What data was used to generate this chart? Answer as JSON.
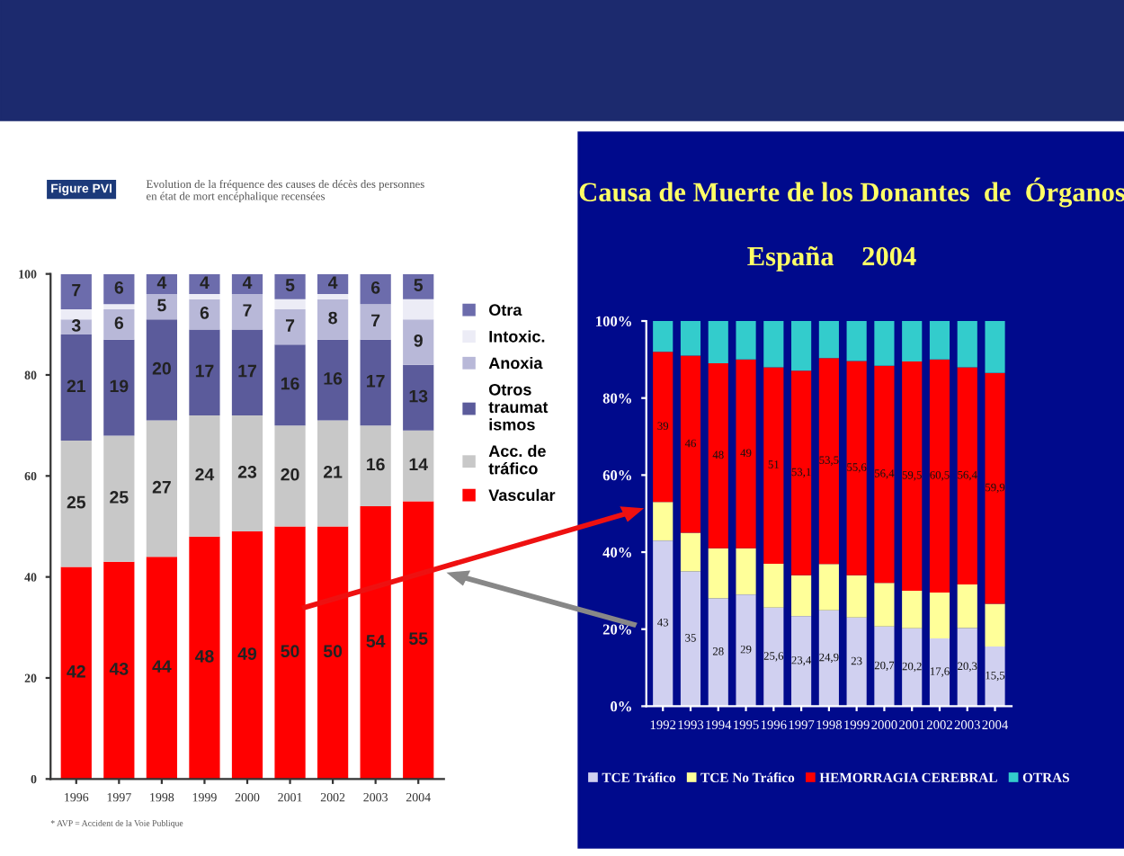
{
  "chart_data": [
    {
      "type": "bar",
      "stacked": true,
      "title": "Figure PVI",
      "subtitle": "Evolution de la fréquence des causes de décès des personnes\nen état de mort encéphalique recensées",
      "categories": [
        "1996",
        "1997",
        "1998",
        "1999",
        "2000",
        "2001",
        "2002",
        "2003",
        "2004"
      ],
      "series": [
        {
          "name": "Vascular",
          "color": "#ff0000",
          "values": [
            42,
            43,
            44,
            48,
            49,
            50,
            50,
            54,
            55
          ],
          "value_labels": [
            "42",
            "43",
            "44",
            "48",
            "49",
            "50",
            "50",
            "54",
            "55"
          ]
        },
        {
          "name": "Acc. de\ntráfico",
          "color": "#c8c8c8",
          "values": [
            25,
            25,
            27,
            24,
            23,
            20,
            21,
            16,
            14
          ],
          "value_labels": [
            "25",
            "25",
            "27",
            "24",
            "23",
            "20",
            "21",
            "16",
            "14"
          ]
        },
        {
          "name": "Otros\ntraumat\nismos",
          "color": "#5b5b9b",
          "values": [
            21,
            19,
            20,
            17,
            17,
            16,
            16,
            17,
            13
          ],
          "value_labels": [
            "21",
            "19",
            "20",
            "17",
            "17",
            "16",
            "16",
            "17",
            "13"
          ]
        },
        {
          "name": "Anoxia",
          "color": "#b8b8d8",
          "values": [
            3,
            6,
            5,
            6,
            7,
            7,
            8,
            7,
            9
          ],
          "value_labels": [
            "3",
            "6",
            "5",
            "6",
            "7",
            "7",
            "8",
            "7",
            "9"
          ]
        },
        {
          "name": "Intoxic.",
          "color": "#ececf6",
          "values": [
            2,
            1,
            0,
            1,
            0,
            2,
            1,
            0,
            4
          ]
        },
        {
          "name": "Otra",
          "color": "#6c6cac",
          "values": [
            7,
            6,
            4,
            4,
            4,
            5,
            4,
            6,
            5
          ],
          "value_labels": [
            "7",
            "6",
            "4",
            "4",
            "4",
            "5",
            "4",
            "6",
            "5"
          ]
        }
      ],
      "ylim": [
        0,
        100
      ],
      "yticks": [
        0,
        20,
        40,
        60,
        80,
        100
      ],
      "legend": "right",
      "annotations": [
        "* AVP = Accident de la Voie Publique"
      ]
    },
    {
      "type": "bar",
      "stacked": true,
      "title": "Causa de Muerte de los Donantes  de  Órganos",
      "subtitle": "España    2004",
      "categories": [
        "1992",
        "1993",
        "1994",
        "1995",
        "1996",
        "1997",
        "1998",
        "1999",
        "2000",
        "2001",
        "2002",
        "2003",
        "2004"
      ],
      "series": [
        {
          "name": "TCE Tráfico",
          "color": "#d0d0f0",
          "values": [
            43,
            35,
            28,
            29,
            25.6,
            23.4,
            24.9,
            23,
            20.7,
            20.2,
            17.6,
            20.3,
            15.5
          ],
          "value_labels": [
            "43",
            "35",
            "28",
            "29",
            "25,6",
            "23,4",
            "24,9",
            "23",
            "20,7",
            "20,2",
            "17,6",
            "20,3",
            "15,5"
          ]
        },
        {
          "name": "TCE No Tráfico",
          "color": "#ffff99",
          "values": [
            10,
            10,
            13,
            12,
            11.4,
            10.6,
            12,
            11,
            11.3,
            9.8,
            11.9,
            11.3,
            11.1
          ]
        },
        {
          "name": "HEMORRAGIA CEREBRAL",
          "color": "#ff0000",
          "values": [
            39,
            46,
            48,
            49,
            51,
            53.1,
            53.5,
            55.6,
            56.4,
            59.5,
            60.5,
            56.4,
            59.9
          ],
          "value_labels": [
            "39",
            "46",
            "48",
            "49",
            "51",
            "53,1",
            "53,5",
            "55,6",
            "56,4",
            "59,5",
            "60,5",
            "56,4",
            "59,9"
          ]
        },
        {
          "name": "OTRAS",
          "color": "#33cccc",
          "values": [
            8,
            9,
            11,
            10,
            12,
            12.9,
            9.6,
            10.4,
            11.6,
            10.5,
            10,
            12,
            13.5
          ]
        }
      ],
      "ylim": [
        0,
        100
      ],
      "yticks": [
        {
          "value": 0,
          "label": "0%"
        },
        {
          "value": 20,
          "label": "20%"
        },
        {
          "value": 40,
          "label": "40%"
        },
        {
          "value": 60,
          "label": "60%"
        },
        {
          "value": 80,
          "label": "80%"
        },
        {
          "value": 100,
          "label": "100%"
        }
      ],
      "legend": "bottom"
    }
  ]
}
